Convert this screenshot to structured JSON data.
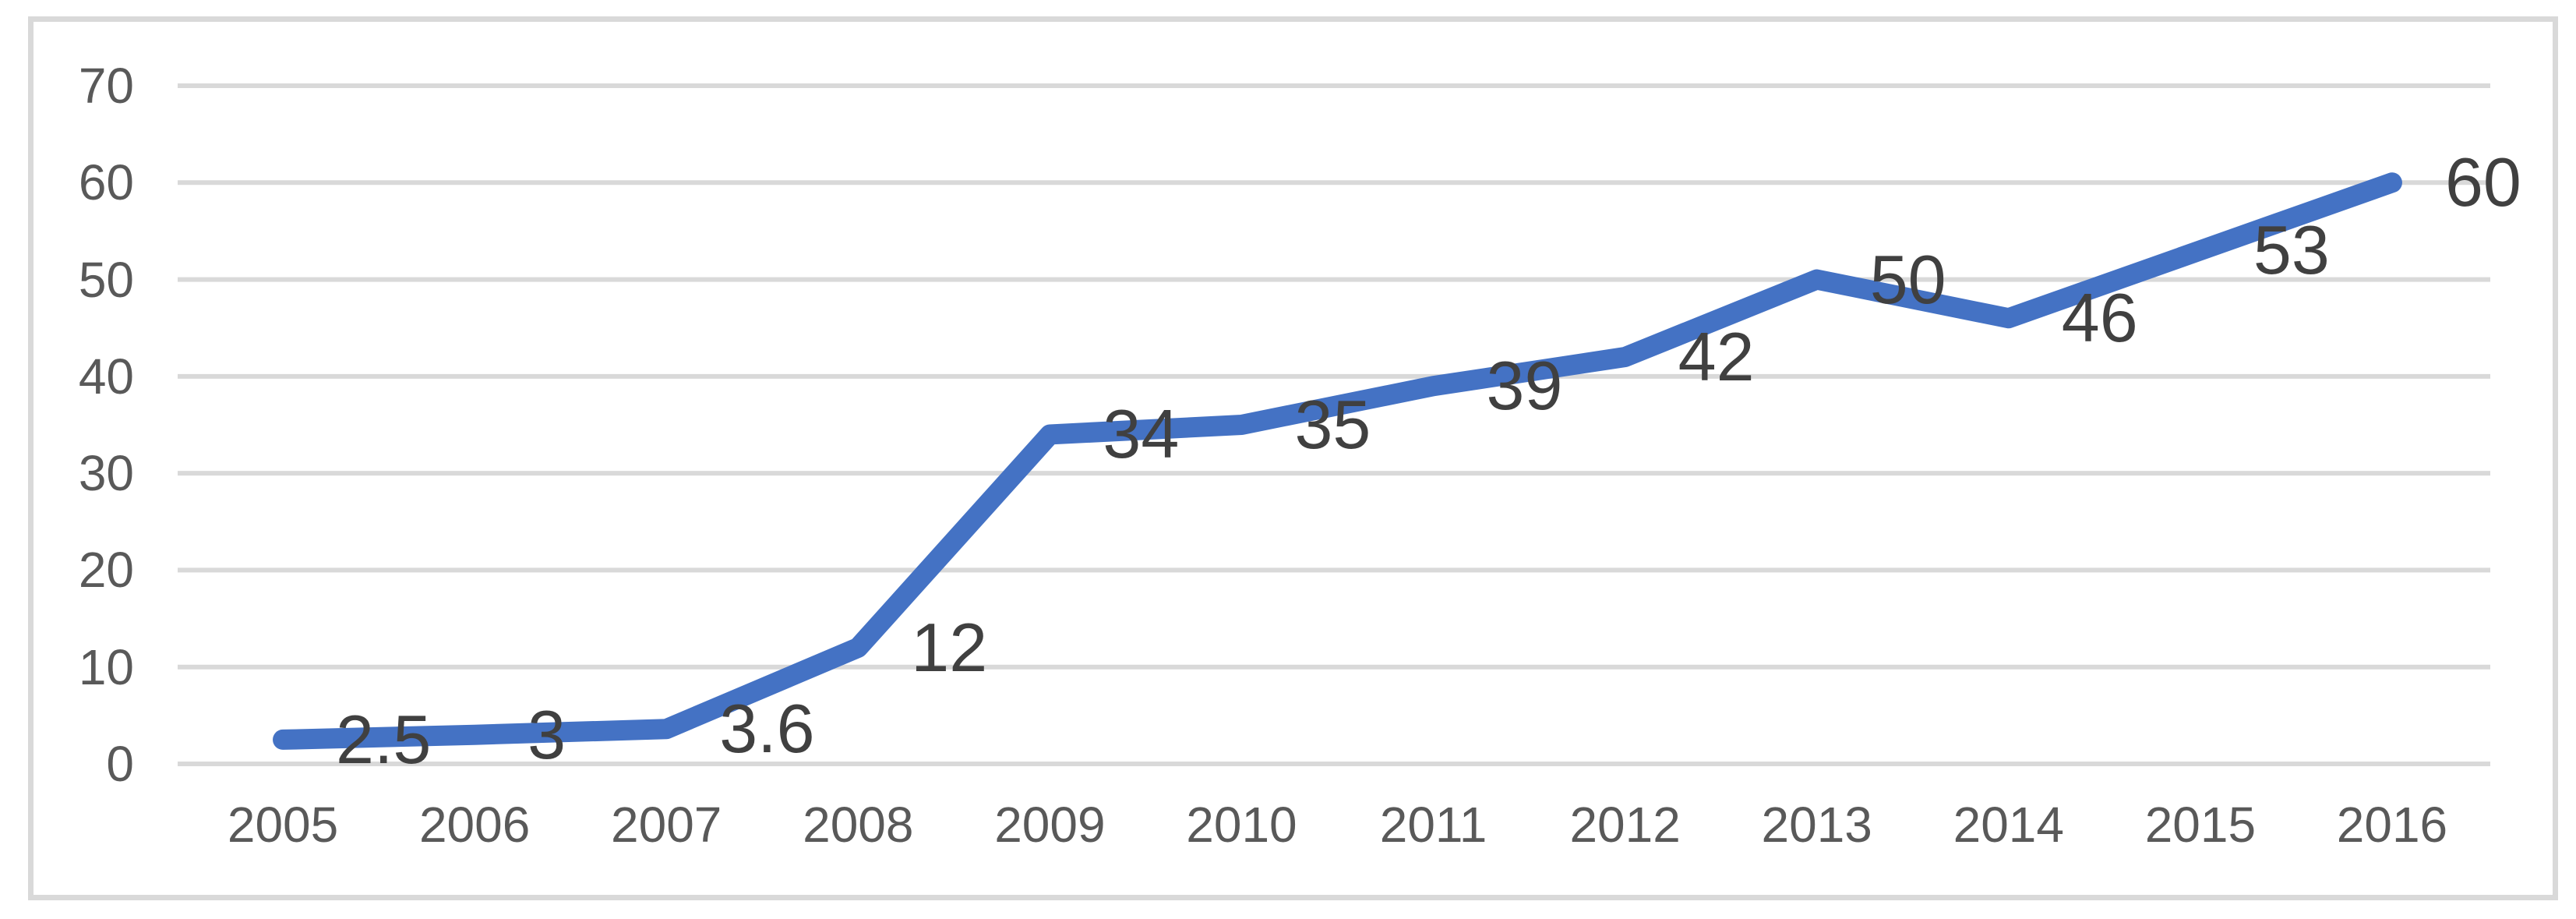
{
  "chart_data": {
    "type": "line",
    "title": "",
    "xlabel": "",
    "ylabel": "",
    "categories": [
      "2005",
      "2006",
      "2007",
      "2008",
      "2009",
      "2010",
      "2011",
      "2012",
      "2013",
      "2014",
      "2015",
      "2016"
    ],
    "series": [
      {
        "name": "",
        "values": [
          2.5,
          3,
          3.6,
          12,
          34,
          35,
          39,
          42,
          50,
          46,
          53,
          60
        ]
      }
    ],
    "data_labels": [
      "2.5",
      "3",
      "3.6",
      "12",
      "34",
      "35",
      "39",
      "42",
      "50",
      "46",
      "53",
      "60"
    ],
    "data_labels_position": "right",
    "yticks": [
      0,
      10,
      20,
      30,
      40,
      50,
      60,
      70
    ],
    "ylim": [
      0,
      70
    ],
    "grid": "horizontal",
    "legend": "none",
    "colors": {
      "line": "#4472C4",
      "gridline": "#D9D9D9",
      "frame_border": "#D9D9D9",
      "axis_text": "#595959",
      "data_label_text": "#404040",
      "background": "#FFFFFF"
    }
  }
}
